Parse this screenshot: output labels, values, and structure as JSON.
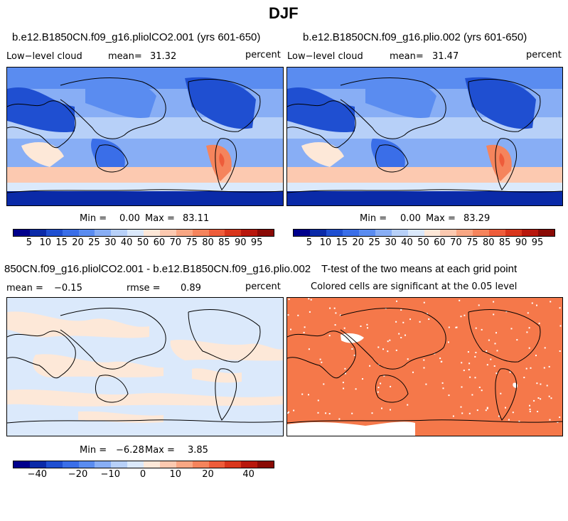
{
  "page_title": "DJF",
  "panels": {
    "top_left": {
      "title": "b.e12.B1850CN.f09_g16.pliolCO2.001 (yrs 601-650)",
      "variable": "Low−level cloud",
      "mean_label": "mean=",
      "mean_value": "31.32",
      "units": "percent",
      "min_label": "Min =",
      "min_value": "0.00",
      "max_label": "Max =",
      "max_value": "83.11"
    },
    "top_right": {
      "title": "b.e12.B1850CN.f09_g16.plio.002 (yrs 601-650)",
      "variable": "Low−level cloud",
      "mean_label": "mean=",
      "mean_value": "31.47",
      "units": "percent",
      "min_label": "Min =",
      "min_value": "0.00",
      "max_label": "Max =",
      "max_value": "83.29"
    },
    "bottom_left": {
      "title": "850CN.f09_g16.pliolCO2.001 - b.e12.B1850CN.f09_g16.plio.002",
      "mean_label": "mean =",
      "mean_value": "−0.15",
      "rmse_label": "rmse =",
      "rmse_value": "0.89",
      "units": "percent",
      "min_label": "Min =",
      "min_value": "−6.28",
      "max_label": "Max =",
      "max_value": "3.85"
    },
    "bottom_right": {
      "title": "T-test of the two means at each grid point",
      "subtitle": "Colored cells are significant at the 0.05 level"
    }
  },
  "colorbars": {
    "absolute": {
      "colors": [
        "#00008c",
        "#0a2aa8",
        "#1f4fd1",
        "#3a6ee8",
        "#5a8cf0",
        "#88aef5",
        "#b7d0f8",
        "#dbe9fb",
        "#fde8d8",
        "#fcc9b0",
        "#f9a784",
        "#f5845c",
        "#ee5c3a",
        "#d9361c",
        "#b8170c",
        "#8a0a05"
      ],
      "labels": [
        "5",
        "10",
        "15",
        "20",
        "25",
        "30",
        "40",
        "50",
        "60",
        "70",
        "75",
        "80",
        "85",
        "90",
        "95"
      ]
    },
    "difference": {
      "colors": [
        "#00008c",
        "#0a2aa8",
        "#1f4fd1",
        "#3a6ee8",
        "#5a8cf0",
        "#88aef5",
        "#b7d0f8",
        "#dbe9fb",
        "#fde8d8",
        "#fcc9b0",
        "#f9a784",
        "#f5845c",
        "#ee5c3a",
        "#d9361c",
        "#b8170c",
        "#8a0a05"
      ],
      "labels": [
        "−40",
        "−20",
        "−10",
        "0",
        "10",
        "20",
        "40"
      ]
    }
  },
  "map_colors": {
    "ocean_mid": "#88aef5",
    "land_low": "#1f4fd1",
    "polar_band": "#fcc9b0",
    "tropics": "#b7d0f8",
    "diff_pos": "#fde8d8",
    "diff_neg": "#dbe9fb",
    "ttest": "#f5784a"
  }
}
